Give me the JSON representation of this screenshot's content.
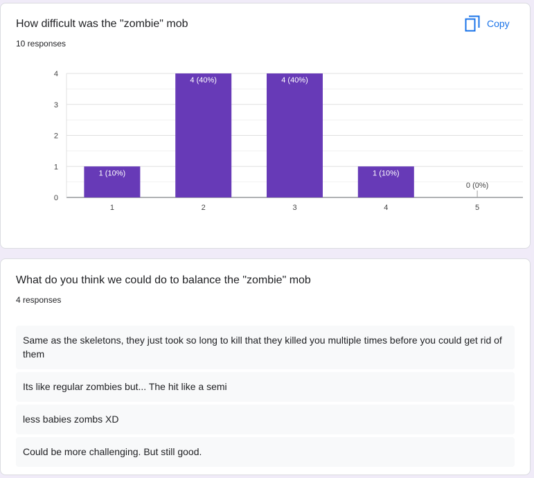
{
  "question1": {
    "title": "How difficult was the \"zombie\" mob",
    "responses": "10 responses",
    "copy_label": "Copy",
    "copy_icon": "copy-icon"
  },
  "chart_data": {
    "type": "bar",
    "categories": [
      "1",
      "2",
      "3",
      "4",
      "5"
    ],
    "values": [
      1,
      4,
      4,
      1,
      0
    ],
    "data_labels": [
      "1 (10%)",
      "4 (40%)",
      "4 (40%)",
      "1 (10%)",
      "0 (0%)"
    ],
    "yticks": [
      "0",
      "1",
      "2",
      "3",
      "4"
    ],
    "ylim": [
      0,
      4
    ],
    "grid": true,
    "bar_color": "#673ab7"
  },
  "question2": {
    "title": "What do you think we could do to balance the \"zombie\" mob",
    "responses": "4 responses",
    "answers": [
      "Same as the skeletons, they just took so long to kill that they killed you multiple times before you could get rid of them",
      "Its like regular zombies but... The hit like a semi",
      "less babies zombs XD",
      "Could be more challenging. But still good."
    ]
  }
}
